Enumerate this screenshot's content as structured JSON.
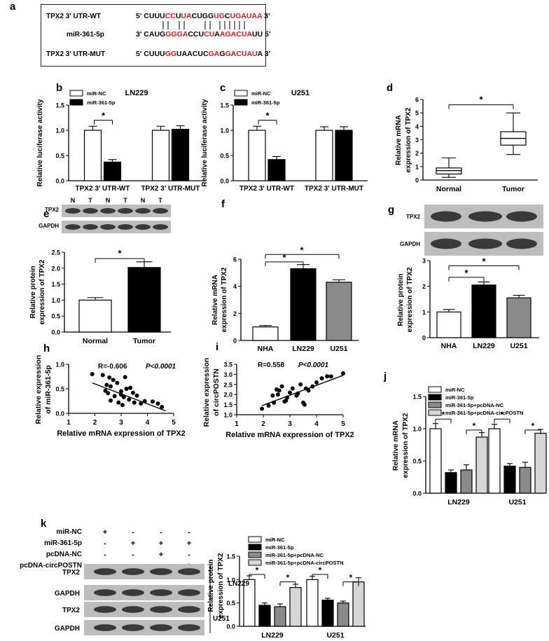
{
  "panel_letters": [
    "a",
    "b",
    "c",
    "d",
    "e",
    "f",
    "g",
    "h",
    "i",
    "j",
    "k"
  ],
  "colors": {
    "red": "#e0191b",
    "black": "#000000",
    "gray_dark": "#8a8a8a",
    "gray_light": "#d6d6d6",
    "white": "#ffffff"
  },
  "panel_a": {
    "wt_label": "TPX2  3' UTR-WT",
    "mir_label": "miR-361-5p",
    "mut_label": "TPX2  3' UTR-MUT",
    "wt_seq": "5' CUUUCCUUACUGGUGCUGAUAA 3'",
    "mir_seq": "3' CAUGGGGACCUCUAAGACUAUU 5'",
    "mut_seq": "5' CUUUGGUAACUCGAGGACUAUA 3'"
  },
  "chart_data": [
    {
      "panel": "b",
      "type": "bar",
      "title": "LN229",
      "ylabel": "Relative luciferase activity",
      "ylim": [
        0,
        1.5
      ],
      "yticks": [
        "0.0",
        "0.5",
        "1.0",
        "1.5"
      ],
      "categories": [
        "TPX2 3' UTR-WT",
        "TPX2 3' UTR-MUT"
      ],
      "series": [
        {
          "name": "miR-NC",
          "values": [
            1.0,
            1.0
          ],
          "errors": [
            0.08,
            0.08
          ]
        },
        {
          "name": "miR-361-5p",
          "values": [
            0.37,
            1.02
          ],
          "errors": [
            0.05,
            0.07
          ]
        }
      ],
      "annotations": [
        "*"
      ]
    },
    {
      "panel": "c",
      "type": "bar",
      "title": "U251",
      "ylabel": "Relative luciferase activity",
      "ylim": [
        0,
        1.5
      ],
      "yticks": [
        "0.0",
        "0.5",
        "1.0",
        "1.5"
      ],
      "categories": [
        "TPX2 3' UTR-WT",
        "TPX2 3' UTR-MUT"
      ],
      "series": [
        {
          "name": "miR-NC",
          "values": [
            1.0,
            1.0
          ],
          "errors": [
            0.08,
            0.07
          ]
        },
        {
          "name": "miR-361-5p",
          "values": [
            0.42,
            1.0
          ],
          "errors": [
            0.06,
            0.07
          ]
        }
      ],
      "annotations": [
        "*"
      ]
    },
    {
      "panel": "d",
      "type": "boxplot",
      "ylabel": "Relative mRNA expression of TPX2",
      "ylim": [
        0,
        6
      ],
      "yticks": [
        "0",
        "1",
        "2",
        "3",
        "4",
        "5",
        "6"
      ],
      "categories": [
        "Normal",
        "Tumor"
      ],
      "boxes": [
        {
          "min": 0.2,
          "q1": 0.45,
          "median": 0.7,
          "q3": 0.9,
          "max": 1.65
        },
        {
          "min": 1.9,
          "q1": 2.6,
          "median": 3.1,
          "q3": 3.6,
          "max": 5.0
        }
      ],
      "annotations": [
        "*"
      ]
    },
    {
      "panel": "e",
      "type": "bar",
      "ylabel": "Relative protein expression of TPX2",
      "ylim": [
        0,
        2.5
      ],
      "yticks": [
        "0.0",
        "0.5",
        "1.0",
        "1.5",
        "2.0",
        "2.5"
      ],
      "categories": [
        "Normal",
        "Tumor"
      ],
      "values": [
        1.0,
        2.02
      ],
      "errors": [
        0.08,
        0.18
      ],
      "fills": [
        "white",
        "black"
      ],
      "blot": {
        "lanes": [
          "N",
          "T",
          "N",
          "T",
          "N",
          "T"
        ],
        "rows": [
          "TPX2",
          "GAPDH"
        ]
      },
      "annotations": [
        "*"
      ]
    },
    {
      "panel": "f",
      "type": "bar",
      "ylabel": "Relative mRNA expression of TPX2",
      "ylim": [
        0,
        6
      ],
      "yticks": [
        "0",
        "2",
        "4",
        "6"
      ],
      "categories": [
        "NHA",
        "LN229",
        "U251"
      ],
      "values": [
        1.0,
        5.3,
        4.3
      ],
      "errors": [
        0.1,
        0.3,
        0.18
      ],
      "fills": [
        "white",
        "black",
        "gray"
      ],
      "annotations": [
        "*",
        "*"
      ]
    },
    {
      "panel": "g",
      "type": "bar",
      "ylabel": "Relative protein expression of TPX2",
      "ylim": [
        0,
        3
      ],
      "yticks": [
        "0",
        "1",
        "2",
        "3"
      ],
      "categories": [
        "NHA",
        "LN229",
        "U251"
      ],
      "values": [
        1.0,
        2.05,
        1.55
      ],
      "errors": [
        0.1,
        0.12,
        0.1
      ],
      "fills": [
        "white",
        "black",
        "gray"
      ],
      "blot": {
        "rows": [
          "TPX2",
          "GAPDH"
        ]
      },
      "annotations": [
        "*",
        "*"
      ]
    },
    {
      "panel": "h",
      "type": "scatter",
      "xlabel": "Relative mRNA expression of TPX2",
      "ylabel": "Relative expression of miR-361-5p",
      "xlim": [
        1,
        5
      ],
      "ylim": [
        0,
        1.0
      ],
      "xticks": [
        "1",
        "2",
        "3",
        "4",
        "5"
      ],
      "yticks": [
        "0.0",
        "0.5",
        "1.0"
      ],
      "stat_r": "R=-0.606",
      "stat_p": "P<0.0001",
      "x": [
        1.9,
        2.3,
        2.55,
        2.7,
        2.45,
        2.6,
        2.85,
        3.15,
        2.4,
        3.0,
        3.2,
        3.35,
        2.5,
        2.75,
        3.0,
        3.1,
        3.45,
        3.6,
        3.3,
        2.6,
        2.9,
        3.5,
        3.75,
        3.9,
        4.2,
        4.4,
        4.55,
        3.05
      ],
      "y": [
        0.8,
        0.78,
        0.73,
        0.68,
        0.58,
        0.55,
        0.62,
        0.74,
        0.46,
        0.45,
        0.5,
        0.52,
        0.41,
        0.35,
        0.38,
        0.33,
        0.42,
        0.36,
        0.28,
        0.26,
        0.22,
        0.22,
        0.2,
        0.25,
        0.24,
        0.2,
        0.13,
        0.17
      ],
      "fit": {
        "x": [
          1.9,
          4.7
        ],
        "y": [
          0.62,
          0.05
        ]
      }
    },
    {
      "panel": "i",
      "type": "scatter",
      "xlabel": "Relative mRNA expression of TPX2",
      "ylabel": "Relative expression of circPOSTN",
      "xlim": [
        1,
        5
      ],
      "ylim": [
        1.0,
        3.5
      ],
      "xticks": [
        "1",
        "2",
        "3",
        "4",
        "5"
      ],
      "yticks": [
        "1.0",
        "1.5",
        "2.0",
        "2.5",
        "3.0",
        "3.5"
      ],
      "stat_r": "R=0.558",
      "stat_p": "P<0.0001",
      "x": [
        1.95,
        2.2,
        2.4,
        2.5,
        2.6,
        2.35,
        2.7,
        2.85,
        2.8,
        3.0,
        3.1,
        3.25,
        3.3,
        2.55,
        2.9,
        3.4,
        3.55,
        3.6,
        3.5,
        3.7,
        3.85,
        4.0,
        4.2,
        4.4,
        4.55,
        5.0
      ],
      "y": [
        1.3,
        1.45,
        1.6,
        2.25,
        2.2,
        1.95,
        2.4,
        1.7,
        1.65,
        2.1,
        2.3,
        1.95,
        2.05,
        2.0,
        1.85,
        2.5,
        1.5,
        2.3,
        1.6,
        2.2,
        2.4,
        2.6,
        2.8,
        2.9,
        2.9,
        3.05
      ],
      "fit": {
        "x": [
          1.95,
          5.0
        ],
        "y": [
          1.45,
          2.95
        ]
      }
    },
    {
      "panel": "j",
      "type": "bar",
      "ylabel": "Relative mRNA expression of TPX2",
      "ylim": [
        0,
        1.5
      ],
      "yticks": [
        "0.0",
        "0.5",
        "1.0",
        "1.5"
      ],
      "categories": [
        "LN229",
        "U251"
      ],
      "series": [
        {
          "name": "miR-NC",
          "values": [
            1.0,
            1.0
          ],
          "errors": [
            0.08,
            0.07
          ]
        },
        {
          "name": "miR-361-5p",
          "values": [
            0.32,
            0.42
          ],
          "errors": [
            0.04,
            0.04
          ]
        },
        {
          "name": "miR-361-5p+pcDNA-NC",
          "values": [
            0.36,
            0.4
          ],
          "errors": [
            0.08,
            0.08
          ]
        },
        {
          "name": "miR-361-5p+pcDNA-circPOSTN",
          "values": [
            0.87,
            0.93
          ],
          "errors": [
            0.07,
            0.06
          ]
        }
      ],
      "annotations": [
        "*",
        "*",
        "*",
        "*"
      ]
    },
    {
      "panel": "k",
      "type": "bar",
      "ylabel": "Relative protein expression of TPX2",
      "ylim": [
        0,
        1.5
      ],
      "yticks": [
        "0.0",
        "0.5",
        "1.0",
        "1.5"
      ],
      "categories": [
        "LN229",
        "U251"
      ],
      "series": [
        {
          "name": "miR-NC",
          "values": [
            1.0,
            1.0
          ],
          "errors": [
            0.08,
            0.07
          ]
        },
        {
          "name": "miR-361-5p",
          "values": [
            0.45,
            0.56
          ],
          "errors": [
            0.05,
            0.04
          ]
        },
        {
          "name": "miR-361-5p+pcDNA-NC",
          "values": [
            0.42,
            0.5
          ],
          "errors": [
            0.06,
            0.04
          ]
        },
        {
          "name": "miR-361-5p+pcDNA-circPOSTN",
          "values": [
            0.83,
            0.95
          ],
          "errors": [
            0.07,
            0.09
          ]
        }
      ],
      "annotations": [
        "*",
        "*",
        "*",
        "*"
      ],
      "blot": {
        "conditions": [
          "miR-NC",
          "miR-361-5p",
          "pcDNA-NC",
          "pcDNA-circPOSTN"
        ],
        "signs": [
          [
            "+",
            "-",
            "-",
            "-"
          ],
          [
            "-",
            "+",
            "+",
            "+"
          ],
          [
            "-",
            "-",
            "+",
            "-"
          ],
          [
            "-",
            "-",
            "-",
            "+"
          ]
        ],
        "rows": [
          "TPX2",
          "GAPDH",
          "TPX2",
          "GAPDH"
        ],
        "groups": [
          "LN229",
          "U251"
        ]
      }
    }
  ]
}
